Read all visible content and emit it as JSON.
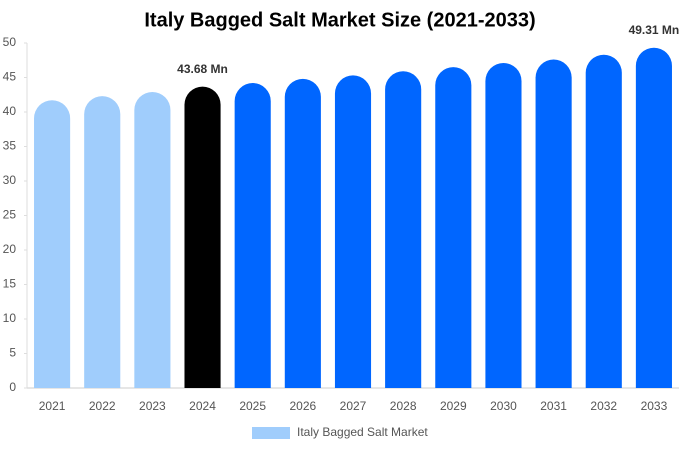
{
  "chart_data": {
    "type": "bar",
    "title": "Italy Bagged Salt Market Size (2021-2033)",
    "categories": [
      "2021",
      "2022",
      "2023",
      "2024",
      "2025",
      "2026",
      "2027",
      "2028",
      "2029",
      "2030",
      "2031",
      "2032",
      "2033"
    ],
    "series": [
      {
        "name": "Italy Bagged Salt Market",
        "color": "#a0cdfc",
        "colors": [
          "#a0cdfc",
          "#a0cdfc",
          "#a0cdfc",
          "#000000",
          "#0066ff",
          "#0066ff",
          "#0066ff",
          "#0066ff",
          "#0066ff",
          "#0066ff",
          "#0066ff",
          "#0066ff",
          "#0066ff"
        ],
        "values": [
          41.7,
          42.3,
          42.9,
          43.68,
          44.2,
          44.8,
          45.3,
          45.9,
          46.5,
          47.1,
          47.6,
          48.3,
          49.31
        ],
        "value_labels": [
          null,
          null,
          null,
          "43.68 Mn",
          null,
          null,
          null,
          null,
          null,
          null,
          null,
          null,
          "49.31 Mn"
        ]
      }
    ],
    "ylim": [
      0,
      50
    ],
    "yticks": [
      0,
      5,
      10,
      15,
      20,
      25,
      30,
      35,
      40,
      45,
      50
    ]
  }
}
